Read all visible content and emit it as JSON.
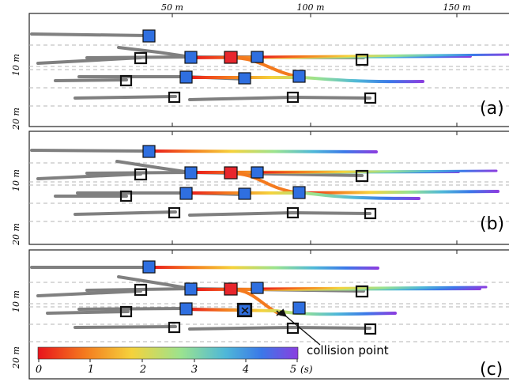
{
  "x_axis": {
    "unit": "m",
    "ticks": [
      {
        "value": 50,
        "label": "50 m"
      },
      {
        "value": 100,
        "label": "100 m"
      },
      {
        "value": 150,
        "label": "150 m"
      }
    ]
  },
  "y_axis": {
    "ticks": [
      {
        "value": 10,
        "label": "10 m"
      },
      {
        "value": 20,
        "label": "20 m"
      }
    ]
  },
  "panels": [
    {
      "id": "a",
      "label": "(a)"
    },
    {
      "id": "b",
      "label": "(b)"
    },
    {
      "id": "c",
      "label": "(c)",
      "annotation": "collision point"
    }
  ],
  "colorbar": {
    "ticks": [
      "0",
      "1",
      "2",
      "3",
      "4",
      "5"
    ],
    "unit": "(s)",
    "colors": [
      "#e8141c",
      "#f47a1e",
      "#f5d23c",
      "#9be38f",
      "#4fb8d8",
      "#3b78e8",
      "#8a3ee0"
    ]
  },
  "colors": {
    "ego_vehicle": "#e8262c",
    "planned_vehicle": "#2f6fe0",
    "other_vehicle_outline": "#111111",
    "history_track": "#808080",
    "lane_line": "#b5b5b5",
    "panel_border": "#222222"
  }
}
